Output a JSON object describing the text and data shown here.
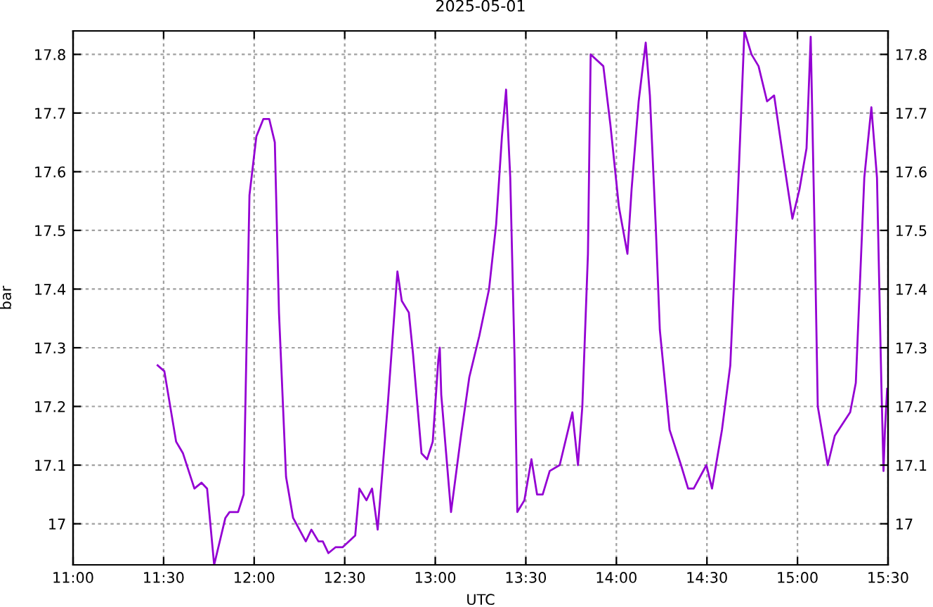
{
  "chart_data": {
    "type": "line",
    "title": "2025-05-01",
    "xlabel": "UTC",
    "ylabel": "bar",
    "xlim": [
      11,
      15.5
    ],
    "xticks": [
      {
        "value": 11,
        "label": "11:00"
      },
      {
        "value": 11.5,
        "label": "11:30"
      },
      {
        "value": 12,
        "label": "12:00"
      },
      {
        "value": 12.5,
        "label": "12:30"
      },
      {
        "value": 13,
        "label": "13:00"
      },
      {
        "value": 13.5,
        "label": "13:30"
      },
      {
        "value": 14,
        "label": "14:00"
      },
      {
        "value": 14.5,
        "label": "14:30"
      },
      {
        "value": 15,
        "label": "15:00"
      },
      {
        "value": 15.5,
        "label": "15:30"
      }
    ],
    "ylim": [
      16.93,
      17.84
    ],
    "yticks": [
      17,
      17.1,
      17.2,
      17.3,
      17.4,
      17.5,
      17.6,
      17.7,
      17.8
    ],
    "y2lim": [
      16.93,
      17.84
    ],
    "y2ticks": [
      17,
      17.1,
      17.2,
      17.3,
      17.4,
      17.5,
      17.6,
      17.7,
      17.8
    ],
    "grid": true,
    "marker": "none",
    "line_style": "solid",
    "series": [
      {
        "color": "#9400d3",
        "x": [
          11.467,
          11.504,
          11.569,
          11.607,
          11.67,
          11.709,
          11.74,
          11.779,
          11.841,
          11.864,
          11.911,
          11.942,
          11.974,
          12.012,
          12.051,
          12.083,
          12.114,
          12.137,
          12.176,
          12.215,
          12.285,
          12.316,
          12.355,
          12.379,
          12.41,
          12.449,
          12.488,
          12.558,
          12.581,
          12.62,
          12.651,
          12.682,
          12.737,
          12.791,
          12.815,
          12.854,
          12.877,
          12.924,
          12.955,
          12.986,
          13.017,
          13.025,
          13.033,
          13.087,
          13.142,
          13.188,
          13.243,
          13.297,
          13.336,
          13.368,
          13.391,
          13.414,
          13.438,
          13.453,
          13.492,
          13.531,
          13.562,
          13.593,
          13.632,
          13.687,
          13.757,
          13.788,
          13.812,
          13.843,
          13.858,
          13.928,
          13.967,
          14.014,
          14.061,
          14.084,
          14.123,
          14.162,
          14.185,
          14.217,
          14.24,
          14.294,
          14.357,
          14.396,
          14.427,
          14.497,
          14.528,
          14.583,
          14.629,
          14.668,
          14.707,
          14.746,
          14.785,
          14.832,
          14.871,
          14.918,
          14.972,
          15.011,
          15.05,
          15.073,
          15.097,
          15.112,
          15.167,
          15.206,
          15.291,
          15.322,
          15.369,
          15.408,
          15.439,
          15.463,
          15.475,
          15.483,
          15.495
        ],
        "values": [
          17.27,
          17.26,
          17.14,
          17.12,
          17.06,
          17.07,
          17.06,
          16.93,
          17.01,
          17.02,
          17.02,
          17.05,
          17.56,
          17.66,
          17.69,
          17.69,
          17.65,
          17.36,
          17.08,
          17.01,
          16.97,
          16.99,
          16.97,
          16.97,
          16.95,
          16.96,
          16.96,
          16.98,
          17.06,
          17.04,
          17.06,
          16.99,
          17.2,
          17.43,
          17.38,
          17.36,
          17.29,
          17.12,
          17.11,
          17.14,
          17.28,
          17.3,
          17.22,
          17.02,
          17.15,
          17.25,
          17.32,
          17.4,
          17.51,
          17.66,
          17.74,
          17.59,
          17.28,
          17.02,
          17.04,
          17.11,
          17.05,
          17.05,
          17.09,
          17.1,
          17.19,
          17.1,
          17.2,
          17.46,
          17.8,
          17.78,
          17.68,
          17.54,
          17.46,
          17.57,
          17.72,
          17.82,
          17.73,
          17.51,
          17.33,
          17.16,
          17.1,
          17.06,
          17.06,
          17.1,
          17.06,
          17.16,
          17.27,
          17.54,
          17.84,
          17.8,
          17.78,
          17.72,
          17.73,
          17.63,
          17.52,
          17.57,
          17.64,
          17.83,
          17.46,
          17.2,
          17.1,
          17.15,
          17.19,
          17.24,
          17.59,
          17.71,
          17.59,
          17.24,
          17.09,
          17.16,
          17.23
        ]
      }
    ]
  }
}
